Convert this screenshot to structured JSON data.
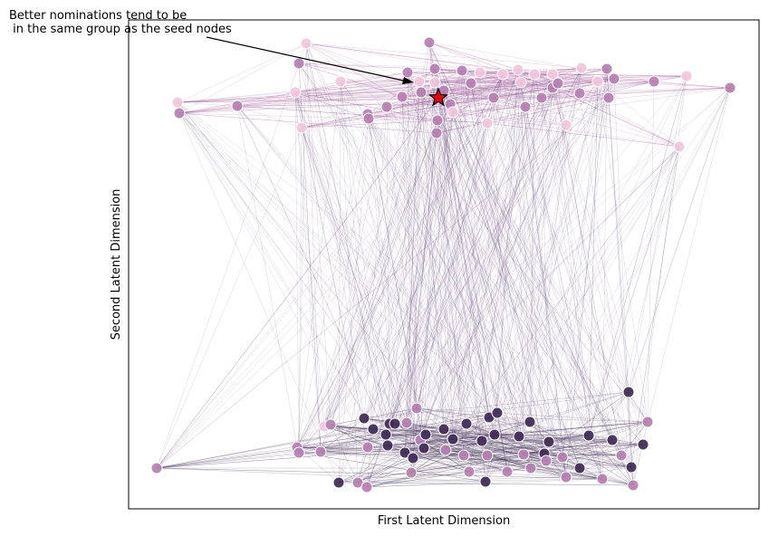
{
  "chart_data": {
    "type": "scatter",
    "title": "",
    "xlabel": "First Latent Dimension",
    "ylabel": "Second Latent Dimension",
    "xticks": [],
    "yticks": [],
    "grid": false,
    "annotation": {
      "lines": [
        "Better nominations tend to be",
        " in the same group as the seed nodes"
      ]
    },
    "colors": {
      "light": "#f2c7dc",
      "mid": "#b57fb0",
      "dark": "#3f2a55",
      "seed": "#e8000b",
      "edge_top": "#a25a9a",
      "edge_cross": "#5c3c74",
      "edge_bottom": "#3a2850"
    }
  }
}
